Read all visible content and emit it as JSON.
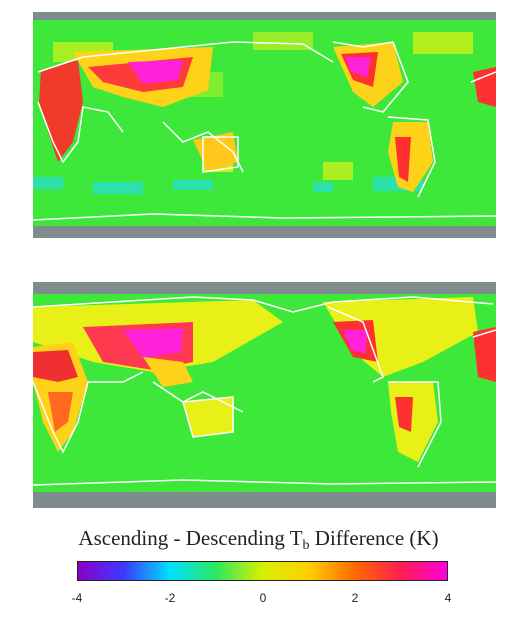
{
  "title": {
    "main": "Ascending - Descending T",
    "subscript": "b",
    "suffix": " Difference (K)"
  },
  "colorbar": {
    "min": -4,
    "max": 4,
    "ticks": [
      "-4",
      "-2",
      "0",
      "2",
      "4"
    ],
    "stops": [
      "#8a00c8",
      "#3b3bff",
      "#00e0ff",
      "#2de860",
      "#d8f000",
      "#ffd000",
      "#ff6a00",
      "#ff1e50",
      "#ff00e0"
    ]
  },
  "maps": [
    {
      "name": "map-top"
    },
    {
      "name": "map-bottom"
    }
  ],
  "colors": {
    "background_land_ocean": "#33e633",
    "coastline": "#ffffff",
    "no_data": "#7f8c8d"
  }
}
